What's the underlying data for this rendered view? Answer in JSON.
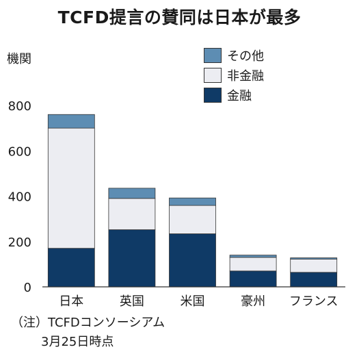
{
  "header": {
    "title": "TCFD提言の賛同は日本が最多"
  },
  "axis": {
    "y_unit": "機関"
  },
  "legend": {
    "items": [
      {
        "label": "その他",
        "color": "#5d8db3"
      },
      {
        "label": "非金融",
        "color": "#ecedf2"
      },
      {
        "label": "金融",
        "color": "#0f3a66"
      }
    ]
  },
  "note": {
    "line1": "（注）TCFDコンソーシアム",
    "line2": "3月25日時点"
  },
  "chart_data": {
    "type": "bar",
    "stacked": true,
    "title": "TCFD提言の賛同は日本が最多",
    "ylabel": "機関",
    "xlabel": "",
    "ylim": [
      0,
      800
    ],
    "yticks": [
      0,
      200,
      400,
      600,
      800
    ],
    "grid": false,
    "legend_position": "top-right",
    "categories": [
      "日本",
      "英国",
      "米国",
      "豪州",
      "フランス"
    ],
    "series": [
      {
        "name": "金融",
        "color": "#0f3a66",
        "values": [
          170,
          252,
          234,
          70,
          64
        ]
      },
      {
        "name": "非金融",
        "color": "#ecedf2",
        "values": [
          530,
          138,
          125,
          60,
          58
        ]
      },
      {
        "name": "その他",
        "color": "#5d8db3",
        "values": [
          60,
          45,
          33,
          10,
          6
        ]
      }
    ]
  }
}
